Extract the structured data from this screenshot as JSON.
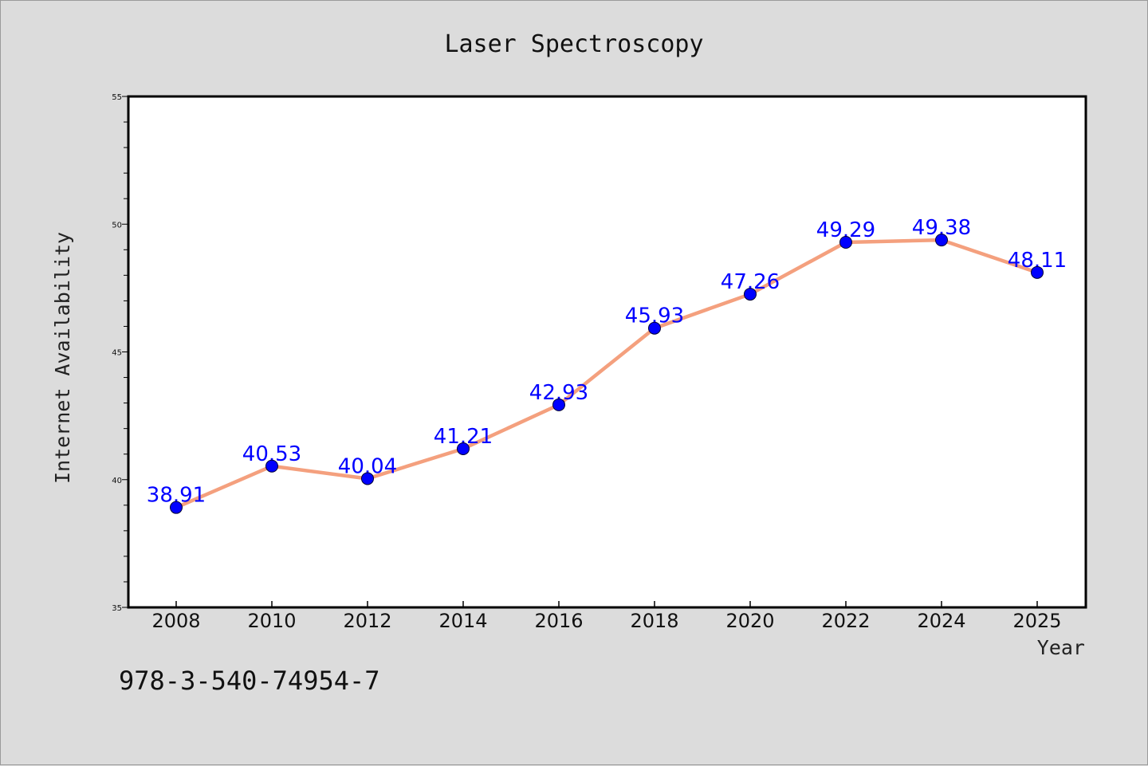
{
  "chart_data": {
    "type": "line",
    "title": "Laser Spectroscopy",
    "xlabel": "Year",
    "ylabel": "Internet Availability",
    "categories": [
      "2008",
      "2010",
      "2012",
      "2014",
      "2016",
      "2018",
      "2020",
      "2022",
      "2024",
      "2025"
    ],
    "series": [
      {
        "values": [
          38.91,
          40.53,
          40.04,
          41.21,
          42.93,
          45.93,
          47.26,
          49.29,
          49.38,
          48.11
        ],
        "data_labels": [
          "38.91",
          "40.53",
          "40.04",
          "41.21",
          "42.93",
          "45.93",
          "47.26",
          "49.29",
          "49.38",
          "48.11"
        ],
        "line_color": "#f4a07e",
        "marker_color": "#0000ff"
      }
    ],
    "ylim": [
      35,
      55
    ],
    "yticks": [
      "35",
      "40",
      "45",
      "50",
      "55"
    ],
    "grid": false,
    "legend": "none"
  },
  "footnote": "978-3-540-74954-7",
  "colors": {
    "background": "#dcdcdc",
    "plot_area": "#ffffff",
    "line": "#f4a07e",
    "marker": "#0000ff",
    "data_label": "#0000ff"
  }
}
